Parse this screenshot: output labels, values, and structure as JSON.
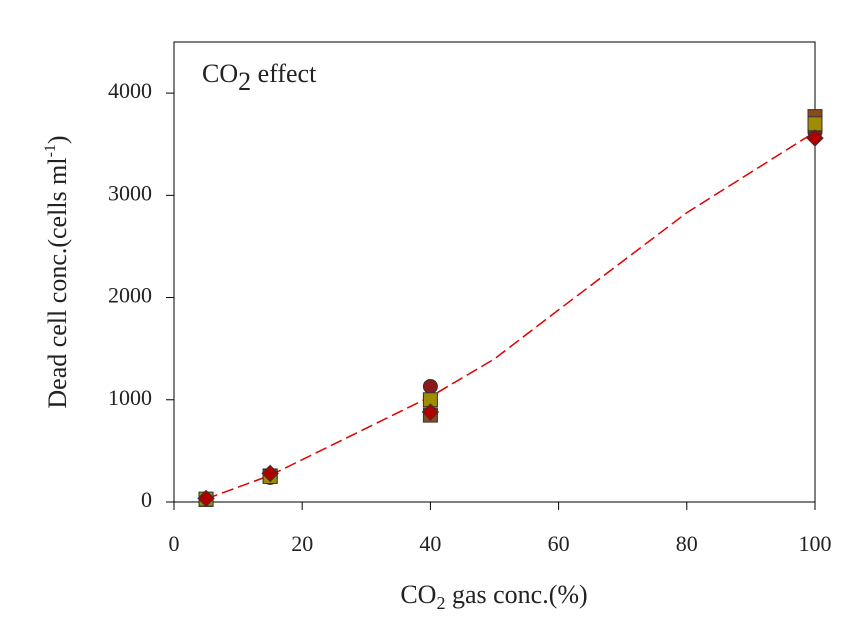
{
  "chart_data": {
    "type": "scatter",
    "title": [
      "CO",
      "2",
      " effect"
    ],
    "xlabel": [
      "CO",
      "2",
      " gas conc.(%)"
    ],
    "ylabel": [
      "Dead cell conc.(cells ml",
      "-1",
      ")"
    ],
    "x": [
      5,
      15,
      40,
      100
    ],
    "series": [
      {
        "marker": "circle",
        "color": "#8b1a1a",
        "values": [
          30,
          240,
          1130,
          3620
        ]
      },
      {
        "marker": "square",
        "color": "#8b4a1c",
        "values": [
          25,
          255,
          850,
          3770
        ]
      },
      {
        "marker": "square",
        "color": "#a08c00",
        "values": [
          28,
          250,
          1000,
          3700
        ]
      },
      {
        "marker": "diamond",
        "color": "#b00000",
        "values": [
          35,
          280,
          880,
          3560
        ]
      },
      {
        "marker": "none",
        "line": "dashed",
        "color": "#e00000",
        "x": [
          5,
          15,
          40,
          50,
          60,
          80,
          100
        ],
        "values": [
          30,
          260,
          1030,
          1400,
          1880,
          2830,
          3620
        ]
      }
    ],
    "xlim": [
      0,
      100
    ],
    "xticks": [
      0,
      20,
      40,
      60,
      80,
      100
    ],
    "ylim": [
      0,
      4500
    ],
    "yticks": [
      0,
      1000,
      2000,
      3000,
      4000
    ]
  }
}
